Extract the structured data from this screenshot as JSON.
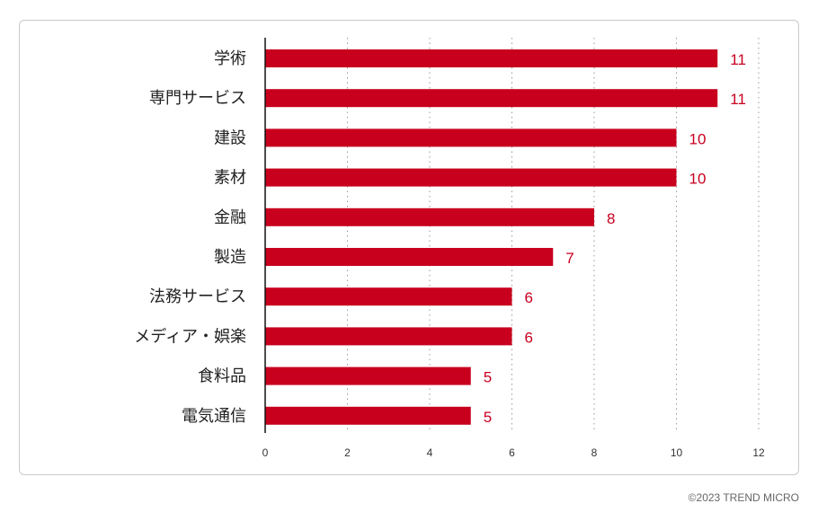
{
  "chart_data": {
    "type": "bar",
    "orientation": "horizontal",
    "categories": [
      "学術",
      "専門サービス",
      "建設",
      "素材",
      "金融",
      "製造",
      "法務サービス",
      "メディア・娯楽",
      "食料品",
      "電気通信"
    ],
    "values": [
      11,
      11,
      10,
      10,
      8,
      7,
      6,
      6,
      5,
      5
    ],
    "xlim": [
      0,
      12
    ],
    "xticks": [
      0,
      2,
      4,
      6,
      8,
      10,
      12
    ],
    "grid": "vertical-dotted",
    "bar_color": "#c8001e"
  },
  "footer": {
    "copyright": "©2023 TREND MICRO"
  }
}
